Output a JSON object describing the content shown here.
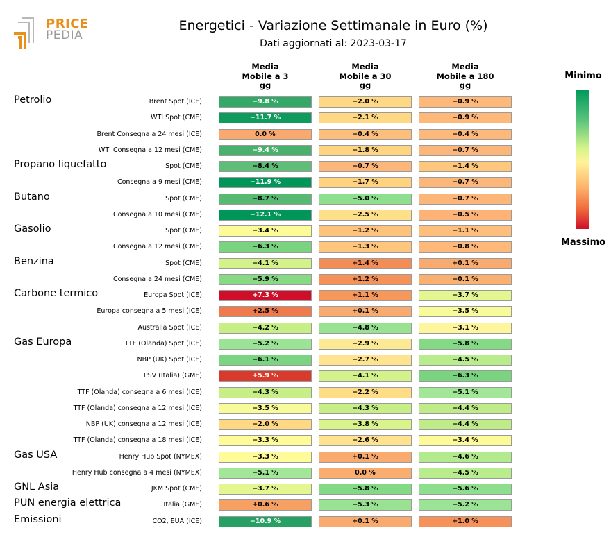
{
  "logo": {
    "line1": "PRICE",
    "line2": "PEDIA"
  },
  "title": "Energetici - Variazione Settimanale in Euro (%)",
  "subtitle": "Dati aggiornati al: 2023-03-17",
  "colorbar": {
    "min_label": "Minimo",
    "max_label": "Massimo"
  },
  "chart_data": {
    "type": "heatmap",
    "columns": [
      {
        "line1": "Media",
        "line2": "Mobile a 3",
        "line3": "gg"
      },
      {
        "line1": "Media",
        "line2": "Mobile a 30",
        "line3": "gg"
      },
      {
        "line1": "Media",
        "line2": "Mobile a 180",
        "line3": "gg"
      }
    ],
    "groups": [
      {
        "name": "Petrolio",
        "start_row": 0
      },
      {
        "name": "Propano liquefatto",
        "start_row": 4
      },
      {
        "name": "Butano",
        "start_row": 6
      },
      {
        "name": "Gasolio",
        "start_row": 8
      },
      {
        "name": "Benzina",
        "start_row": 10
      },
      {
        "name": "Carbone termico",
        "start_row": 12
      },
      {
        "name": "Gas Europa",
        "start_row": 15
      },
      {
        "name": "Gas USA",
        "start_row": 22
      },
      {
        "name": "GNL Asia",
        "start_row": 24
      },
      {
        "name": "PUN energia elettrica",
        "start_row": 25
      },
      {
        "name": "Emissioni",
        "start_row": 26
      }
    ],
    "rows": [
      {
        "label": "Brent Spot (ICE)",
        "values": [
          -9.8,
          -2.0,
          -0.9
        ],
        "colors": [
          "#34a867",
          "#fed883",
          "#fdb87a"
        ]
      },
      {
        "label": "WTI Spot (CME)",
        "values": [
          -11.7,
          -2.1,
          -0.9
        ],
        "colors": [
          "#0f9b5e",
          "#fed883",
          "#fdb87a"
        ]
      },
      {
        "label": "Brent Consegna a 24 mesi (ICE)",
        "values": [
          0.0,
          -0.4,
          -0.4
        ],
        "colors": [
          "#f9a86e",
          "#fdbe7b",
          "#fdb87a"
        ]
      },
      {
        "label": "WTI Consegna a 12 mesi (CME)",
        "values": [
          -9.4,
          -1.8,
          -0.7
        ],
        "colors": [
          "#48b26c",
          "#fed480",
          "#fdb679"
        ]
      },
      {
        "label": "Spot (CME)",
        "values": [
          -8.4,
          -0.7,
          -1.4
        ],
        "colors": [
          "#5ebd76",
          "#fdb679",
          "#fec77c"
        ]
      },
      {
        "label": "Consegna a 9 mesi (CME)",
        "values": [
          -11.9,
          -1.7,
          -0.7
        ],
        "colors": [
          "#00965a",
          "#fed27f",
          "#fdb679"
        ]
      },
      {
        "label": "Spot (CME)",
        "values": [
          -8.7,
          -5.0,
          -0.7
        ],
        "colors": [
          "#58ba72",
          "#8ee08f",
          "#fdb679"
        ]
      },
      {
        "label": "Consegna a 10 mesi (CME)",
        "values": [
          -12.1,
          -2.5,
          -0.5
        ],
        "colors": [
          "#00965a",
          "#fee08b",
          "#fdb378"
        ]
      },
      {
        "label": "Spot (CME)",
        "values": [
          -3.4,
          -1.2,
          -1.1
        ],
        "colors": [
          "#fcfb98",
          "#fdc27c",
          "#fdbf7b"
        ]
      },
      {
        "label": "Consegna a 12 mesi (CME)",
        "values": [
          -6.3,
          -1.3,
          -0.8
        ],
        "colors": [
          "#79d37f",
          "#fdc67c",
          "#fdb87a"
        ]
      },
      {
        "label": "Spot (CME)",
        "values": [
          -4.1,
          1.4,
          0.1
        ],
        "colors": [
          "#d3f28a",
          "#f48c56",
          "#f9ab6f"
        ]
      },
      {
        "label": "Consegna a 24 mesi (CME)",
        "values": [
          -5.9,
          1.2,
          -0.1
        ],
        "colors": [
          "#87d984",
          "#f69259",
          "#fab070"
        ]
      },
      {
        "label": "Europa Spot (ICE)",
        "values": [
          7.3,
          1.1,
          -3.7
        ],
        "colors": [
          "#cf0f29",
          "#f7975c",
          "#e4f690"
        ]
      },
      {
        "label": "Europa consegna a 5 mesi (ICE)",
        "values": [
          2.5,
          0.1,
          -3.5
        ],
        "colors": [
          "#ef7a4c",
          "#f9ab6f",
          "#f8fb9a"
        ]
      },
      {
        "label": "Australia Spot (ICE)",
        "values": [
          -4.2,
          -4.8,
          -3.1
        ],
        "colors": [
          "#c8ef87",
          "#98e291",
          "#fff59c"
        ]
      },
      {
        "label": "TTF (Olanda) Spot (ICE)",
        "values": [
          -5.2,
          -2.9,
          -5.8
        ],
        "colors": [
          "#9be495",
          "#fee993",
          "#84d985"
        ]
      },
      {
        "label": "NBP (UK) Spot (ICE)",
        "values": [
          -6.1,
          -2.7,
          -4.5
        ],
        "colors": [
          "#7bd481",
          "#fee48f",
          "#b9ec8c"
        ]
      },
      {
        "label": "PSV (Italia) (GME)",
        "values": [
          5.9,
          -4.1,
          -6.3
        ],
        "colors": [
          "#d83a2c",
          "#d3f28a",
          "#79d37f"
        ]
      },
      {
        "label": "TTF (Olanda) consegna a 6 mesi (ICE)",
        "values": [
          -4.3,
          -2.2,
          -5.1
        ],
        "colors": [
          "#c8ef87",
          "#fedd86",
          "#a2e697"
        ]
      },
      {
        "label": "TTF (Olanda) consegna a 12 mesi (ICE)",
        "values": [
          -3.5,
          -4.3,
          -4.4
        ],
        "colors": [
          "#f8fb9a",
          "#c8ef87",
          "#bfec89"
        ]
      },
      {
        "label": "NBP (UK) consegna a 12 mesi (ICE)",
        "values": [
          -2.0,
          -3.8,
          -4.4
        ],
        "colors": [
          "#fed883",
          "#daf48c",
          "#bfec89"
        ]
      },
      {
        "label": "TTF (Olanda) consegna a 18 mesi (ICE)",
        "values": [
          -3.3,
          -2.6,
          -3.4
        ],
        "colors": [
          "#fefb98",
          "#fee28d",
          "#fcfb98"
        ]
      },
      {
        "label": "Henry Hub Spot (NYMEX)",
        "values": [
          -3.3,
          0.1,
          -4.6
        ],
        "colors": [
          "#fefb98",
          "#f9ab6f",
          "#b3ea8d"
        ]
      },
      {
        "label": "Henry Hub consegna a 4 mesi (NYMEX)",
        "values": [
          -5.1,
          0.0,
          -4.5
        ],
        "colors": [
          "#a2e697",
          "#f9ae70",
          "#b9ec8c"
        ]
      },
      {
        "label": "JKM Spot (CME)",
        "values": [
          -3.7,
          -5.8,
          -5.6
        ],
        "colors": [
          "#e4f690",
          "#84d985",
          "#8edf8d"
        ]
      },
      {
        "label": "Italia (GME)",
        "values": [
          0.6,
          -5.3,
          -5.2
        ],
        "colors": [
          "#f7a064",
          "#98e291",
          "#9be495"
        ]
      },
      {
        "label": "CO2, EUA (ICE)",
        "values": [
          -10.9,
          0.1,
          1.0
        ],
        "colors": [
          "#26a163",
          "#f9ab6f",
          "#f69259"
        ]
      }
    ]
  }
}
